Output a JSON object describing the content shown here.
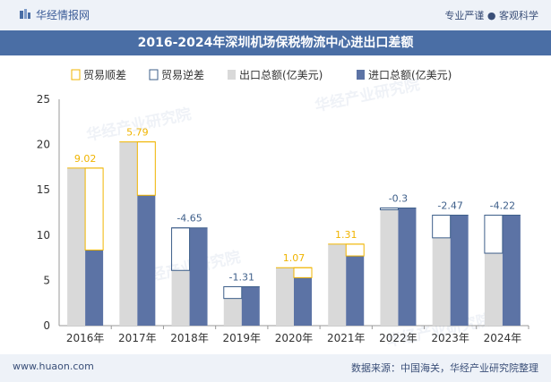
{
  "header": {
    "brand": "华经情报网",
    "slogan": "专业严谨 ● 客观科学"
  },
  "footer": {
    "url": "www.huaon.com",
    "source": "数据来源：中国海关，华经产业研究院整理"
  },
  "watermark": "华经产业研究院",
  "colors": {
    "surplus": "#f0b400",
    "deficit": "#3e5f8a",
    "export": "#d9d9d9",
    "import": "#5c73a5",
    "title_bg": "#4a6ea5"
  },
  "chart_data": {
    "type": "bar",
    "title": "2016-2024年深圳机场保税物流中心进出口差额",
    "categories": [
      "2016年",
      "2017年",
      "2018年",
      "2019年",
      "2020年",
      "2021年",
      "2022年",
      "2023年",
      "2024年"
    ],
    "series": [
      {
        "name": "出口总额(亿美元)",
        "values": [
          17.4,
          20.3,
          6.1,
          3.0,
          6.4,
          9.0,
          12.8,
          9.7,
          8.0
        ]
      },
      {
        "name": "进口总额(亿美元)",
        "values": [
          8.35,
          14.4,
          10.8,
          4.3,
          5.3,
          7.7,
          13.0,
          12.2,
          12.2
        ]
      }
    ],
    "balance": {
      "labels": [
        "9.02",
        "5.79",
        "-4.65",
        "-1.31",
        "1.07",
        "1.31",
        "-0.3",
        "-2.47",
        "-4.22"
      ],
      "values": [
        9.02,
        5.79,
        -4.65,
        -1.31,
        1.07,
        1.31,
        -0.3,
        -2.47,
        -4.22
      ]
    },
    "legend": [
      "贸易顺差",
      "贸易逆差",
      "出口总额(亿美元)",
      "进口总额(亿美元)"
    ],
    "ylim": [
      0,
      25
    ],
    "yticks": [
      "0",
      "5",
      "10",
      "15",
      "20",
      "25"
    ],
    "xlabel": "",
    "ylabel": ""
  }
}
